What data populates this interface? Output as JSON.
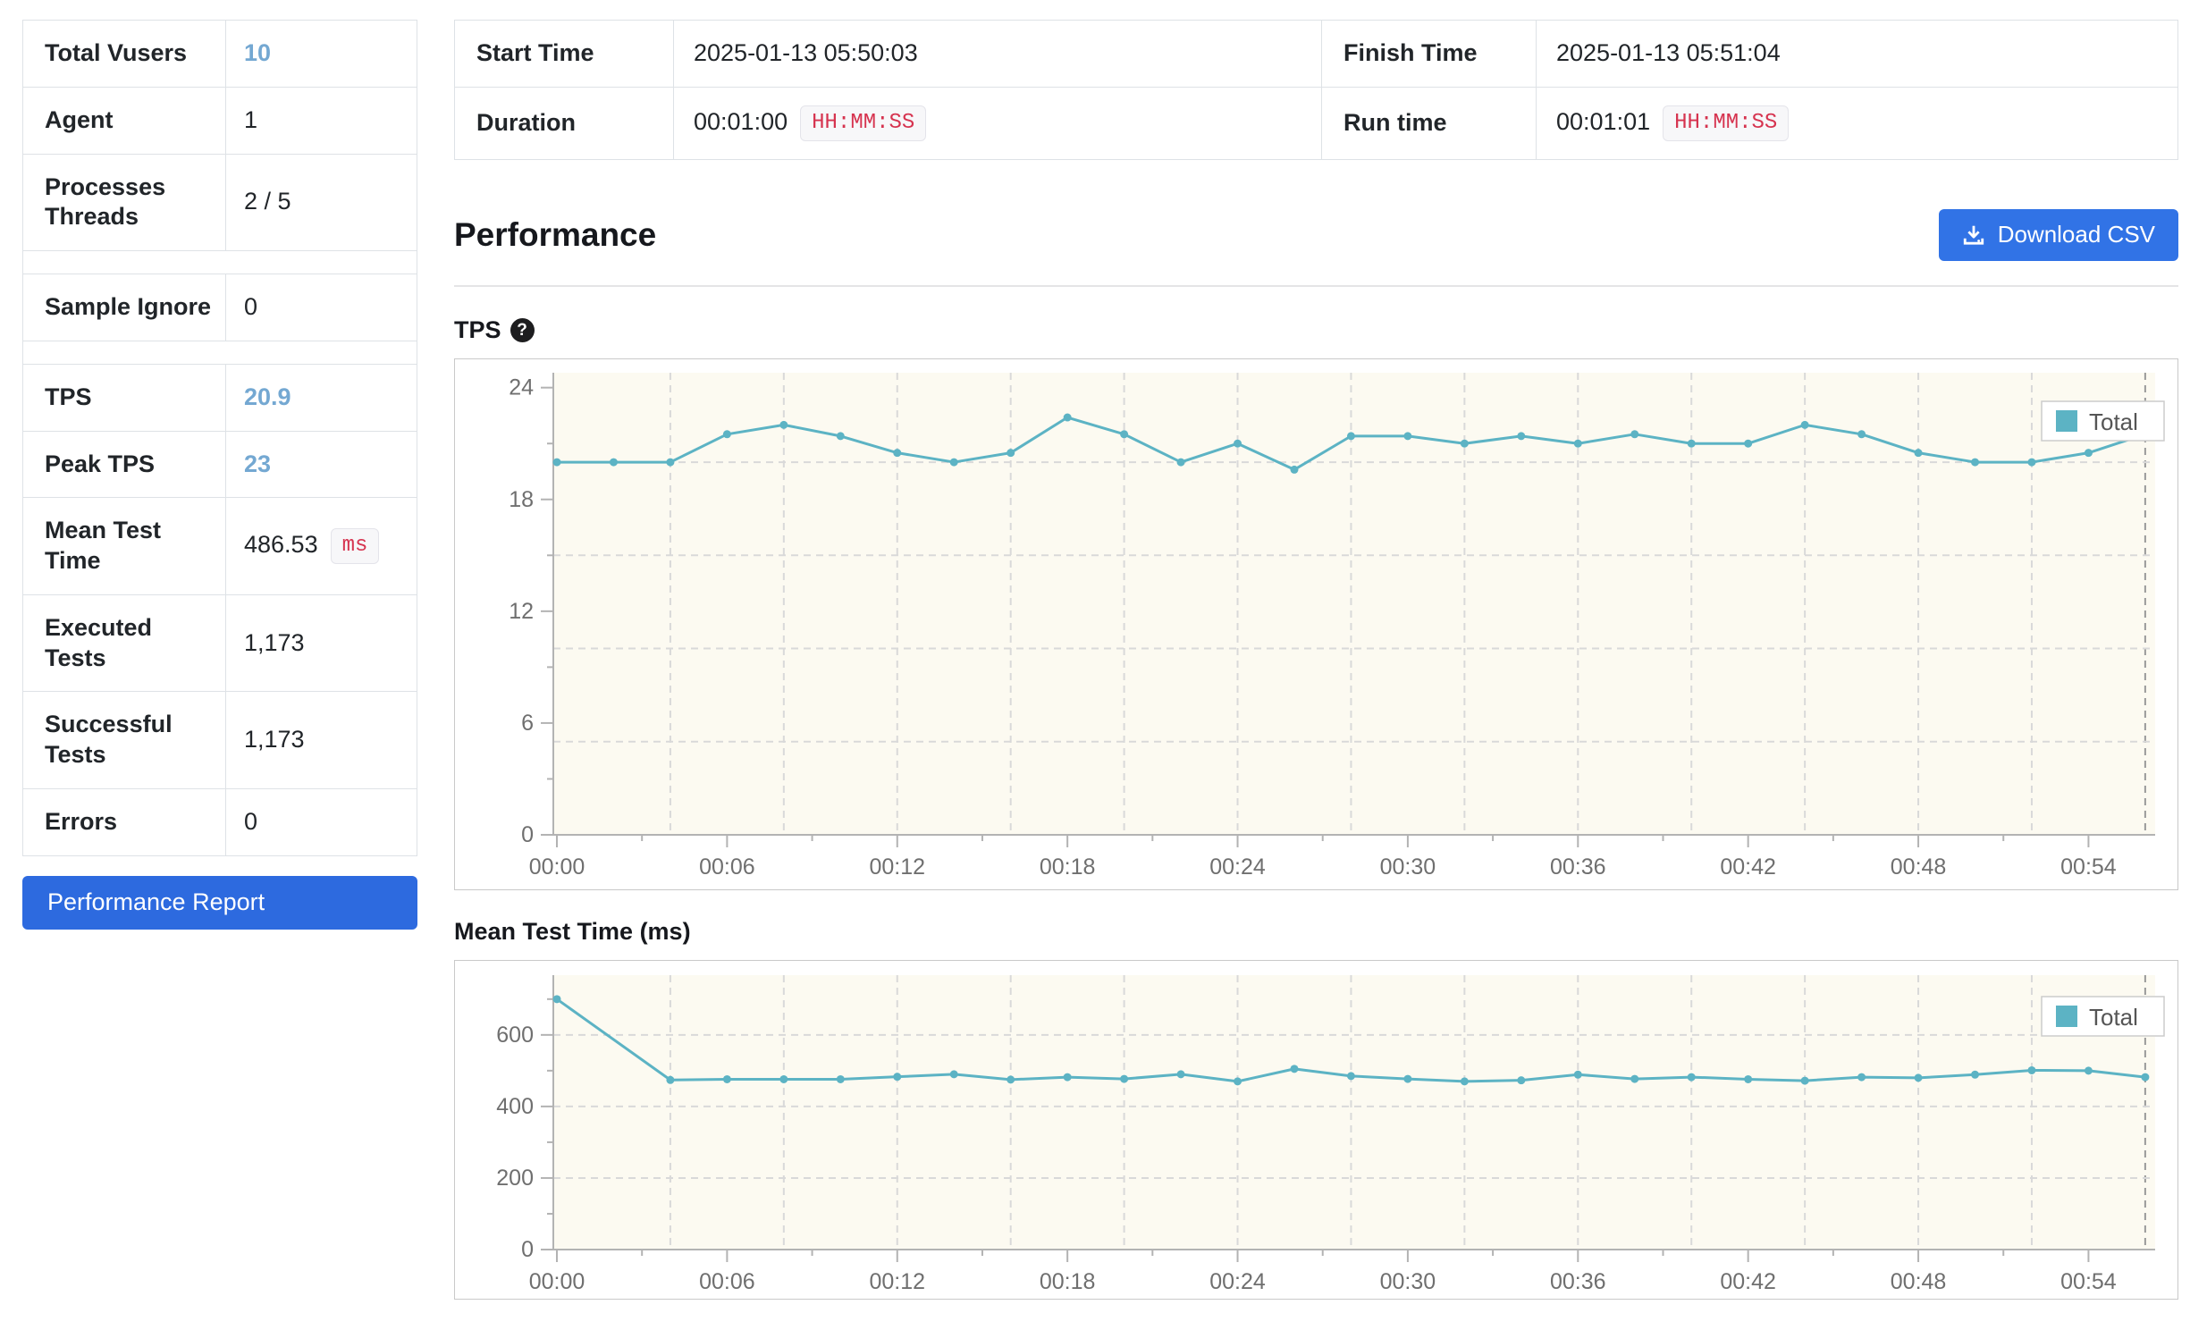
{
  "colors": {
    "accent_blue": "#74a8d2",
    "button_blue": "#2d6adf",
    "download_button_blue": "#3173e6",
    "badge_red": "#d6334f",
    "line_teal": "#5cb3c4",
    "chart_plot_bg": "#fcfaf1"
  },
  "stats_panel": {
    "rows": [
      {
        "label": "Total Vusers",
        "value": "10",
        "accent": true
      },
      {
        "label": "Agent",
        "value": "1"
      },
      {
        "label": "Processes Threads",
        "value": "2 / 5"
      },
      {
        "spacer": true
      },
      {
        "label": "Sample Ignore",
        "value": "0"
      },
      {
        "spacer": true
      },
      {
        "label": "TPS",
        "value": "20.9",
        "accent": true
      },
      {
        "label": "Peak TPS",
        "value": "23",
        "accent": true
      },
      {
        "label": "Mean Test Time",
        "value": "486.53",
        "badge": "ms"
      },
      {
        "label": "Executed Tests",
        "value": "1,173"
      },
      {
        "label": "Successful Tests",
        "value": "1,173"
      },
      {
        "label": "Errors",
        "value": "0"
      }
    ],
    "report_button_label": "Performance Report"
  },
  "time_table": {
    "rows": [
      [
        {
          "label": "Start Time",
          "value": "2025-01-13 05:50:03"
        },
        {
          "label": "Finish Time",
          "value": "2025-01-13 05:51:04"
        }
      ],
      [
        {
          "label": "Duration",
          "value": "00:01:00",
          "badge": "HH:MM:SS"
        },
        {
          "label": "Run time",
          "value": "00:01:01",
          "badge": "HH:MM:SS"
        }
      ]
    ]
  },
  "performance_section": {
    "title": "Performance",
    "download_button_label": "Download CSV",
    "tps_title": "TPS",
    "mtt_title": "Mean Test Time (ms)"
  },
  "chart_data": [
    {
      "id": "tps",
      "type": "line",
      "title": "TPS",
      "legend": "Total",
      "line_color": "#5cb3c4",
      "x_seconds": [
        0,
        2,
        4,
        6,
        8,
        10,
        12,
        14,
        16,
        18,
        20,
        22,
        24,
        26,
        28,
        30,
        32,
        34,
        36,
        38,
        40,
        42,
        44,
        46,
        48,
        50,
        52,
        54,
        56
      ],
      "values": [
        20,
        20,
        20,
        21.5,
        22,
        21.4,
        20.5,
        20,
        20.5,
        22.4,
        21.5,
        20,
        21,
        19.6,
        21.4,
        21.4,
        21,
        21.4,
        21,
        21.5,
        21,
        21,
        22,
        21.5,
        20.5,
        20,
        20,
        20.5,
        21.5
      ],
      "ylim": [
        0,
        24.8
      ],
      "yticks": [
        0,
        6,
        12,
        18,
        24
      ],
      "y_minor_ticks": [
        3,
        9,
        15,
        21
      ],
      "ygrid": [
        5,
        10,
        15,
        20
      ],
      "xtick_seconds": [
        0,
        6,
        12,
        18,
        24,
        30,
        36,
        42,
        48,
        54
      ],
      "xtick_labels": [
        "00:00",
        "00:06",
        "00:12",
        "00:18",
        "00:24",
        "00:30",
        "00:36",
        "00:42",
        "00:48",
        "00:54"
      ],
      "x_minor_tick_seconds": [
        3,
        9,
        15,
        21,
        27,
        33,
        39,
        45,
        51
      ],
      "xgrid_seconds": [
        4,
        8,
        12,
        16,
        20,
        24,
        28,
        32,
        36,
        40,
        44,
        48,
        52,
        56
      ],
      "xlim_seconds": [
        0,
        56.35
      ]
    },
    {
      "id": "mtt",
      "type": "line",
      "title": "Mean Test Time (ms)",
      "legend": "Total",
      "line_color": "#5cb3c4",
      "x_seconds": [
        0,
        4,
        6,
        8,
        10,
        12,
        14,
        16,
        18,
        20,
        22,
        24,
        26,
        28,
        30,
        32,
        34,
        36,
        38,
        40,
        42,
        44,
        46,
        48,
        50,
        52,
        54,
        56
      ],
      "values": [
        700,
        474,
        476,
        476,
        476,
        483,
        490,
        475,
        482,
        477,
        490,
        470,
        505,
        485,
        477,
        470,
        473,
        489,
        477,
        482,
        476,
        472,
        482,
        480,
        489,
        501,
        500,
        482
      ],
      "ylim": [
        0,
        767
      ],
      "yticks": [
        0,
        200,
        400,
        600
      ],
      "y_minor_ticks": [
        100,
        300,
        500,
        700
      ],
      "ygrid": [
        200,
        400,
        600
      ],
      "xtick_seconds": [
        0,
        6,
        12,
        18,
        24,
        30,
        36,
        42,
        48,
        54
      ],
      "xtick_labels": [
        "00:00",
        "00:06",
        "00:12",
        "00:18",
        "00:24",
        "00:30",
        "00:36",
        "00:42",
        "00:48",
        "00:54"
      ],
      "x_minor_tick_seconds": [
        3,
        9,
        15,
        21,
        27,
        33,
        39,
        45,
        51
      ],
      "xgrid_seconds": [
        4,
        8,
        12,
        16,
        20,
        24,
        28,
        32,
        36,
        40,
        44,
        48,
        52,
        56
      ],
      "xlim_seconds": [
        0,
        56.35
      ]
    }
  ]
}
